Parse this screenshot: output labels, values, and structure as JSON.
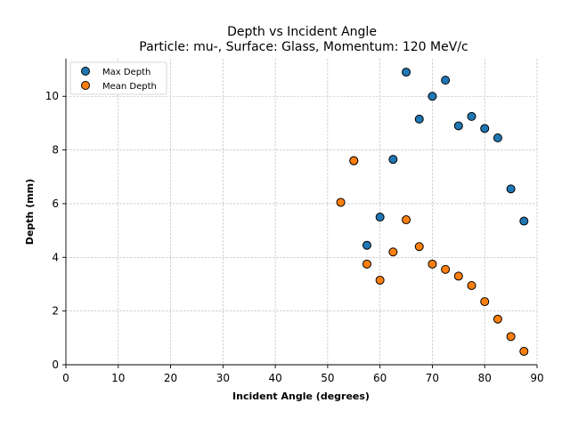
{
  "chart_data": {
    "type": "scatter",
    "title": "Depth vs Incident Angle",
    "subtitle": "Particle: mu-, Surface: Glass, Momentum: 120 MeV/c",
    "xlabel": "Incident Angle (degrees)",
    "ylabel": "Depth (mm)",
    "xlim": [
      0,
      90
    ],
    "ylim": [
      0,
      11.4
    ],
    "xticks": [
      0,
      10,
      20,
      30,
      40,
      50,
      60,
      70,
      80,
      90
    ],
    "yticks": [
      0,
      2,
      4,
      6,
      8,
      10
    ],
    "grid": true,
    "legend_position": "top-left",
    "series": [
      {
        "name": "Max Depth",
        "color": "#1f77b4",
        "x": [
          55.0,
          57.5,
          60.0,
          62.5,
          65.0,
          67.5,
          70.0,
          72.5,
          75.0,
          77.5,
          80.0,
          82.5,
          85.0,
          87.5
        ],
        "y": [
          7.6,
          4.45,
          5.5,
          7.65,
          10.9,
          9.15,
          10.0,
          10.6,
          8.9,
          9.25,
          8.8,
          8.45,
          6.55,
          5.35
        ]
      },
      {
        "name": "Mean Depth",
        "color": "#ff7f0e",
        "x": [
          52.5,
          55.0,
          57.5,
          60.0,
          62.5,
          65.0,
          67.5,
          70.0,
          72.5,
          75.0,
          77.5,
          80.0,
          82.5,
          85.0,
          87.5
        ],
        "y": [
          6.05,
          7.6,
          3.75,
          3.15,
          4.2,
          5.4,
          4.4,
          3.75,
          3.55,
          3.3,
          2.95,
          2.35,
          1.7,
          1.05,
          0.5
        ]
      }
    ]
  }
}
